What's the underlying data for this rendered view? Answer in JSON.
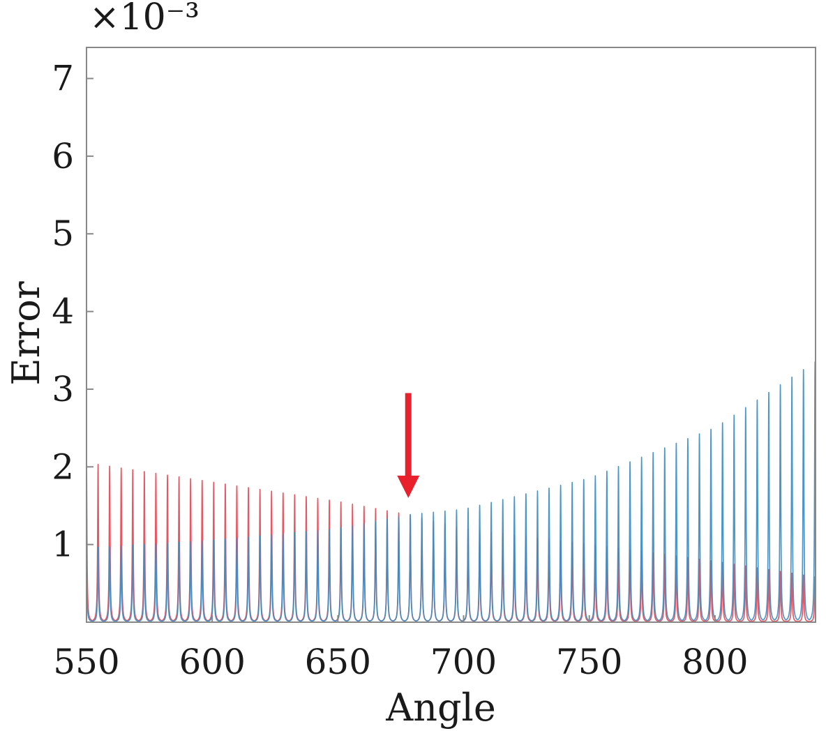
{
  "chart_data": {
    "type": "line",
    "xlabel": "Angle",
    "ylabel": "Error",
    "y_multiplier": "×10⁻³",
    "xlim": [
      550,
      840
    ],
    "ylim": [
      0,
      7.4
    ],
    "x_ticks": [
      "550",
      "600",
      "650",
      "700",
      "750",
      "800"
    ],
    "y_ticks": [
      "1",
      "2",
      "3",
      "4",
      "5",
      "6",
      "7"
    ],
    "series": [
      {
        "color": "#e8434f",
        "peak_period": 4.6,
        "peak_envelope": [
          [
            550,
            2.05
          ],
          [
            600,
            1.8
          ],
          [
            650,
            1.55
          ],
          [
            678,
            1.38
          ],
          [
            700,
            1.2
          ],
          [
            750,
            1.0
          ],
          [
            800,
            0.78
          ],
          [
            840,
            0.58
          ]
        ]
      },
      {
        "color": "#3c8dc4",
        "peak_period": 4.6,
        "peak_envelope": [
          [
            550,
            0.95
          ],
          [
            600,
            1.05
          ],
          [
            650,
            1.2
          ],
          [
            678,
            1.38
          ],
          [
            700,
            1.45
          ],
          [
            750,
            1.85
          ],
          [
            800,
            2.5
          ],
          [
            840,
            3.35
          ]
        ]
      }
    ],
    "annotations": [
      {
        "type": "arrow",
        "color": "#e8212d",
        "x": 678,
        "y_tail": 2.95,
        "y_head": 1.6
      }
    ]
  }
}
